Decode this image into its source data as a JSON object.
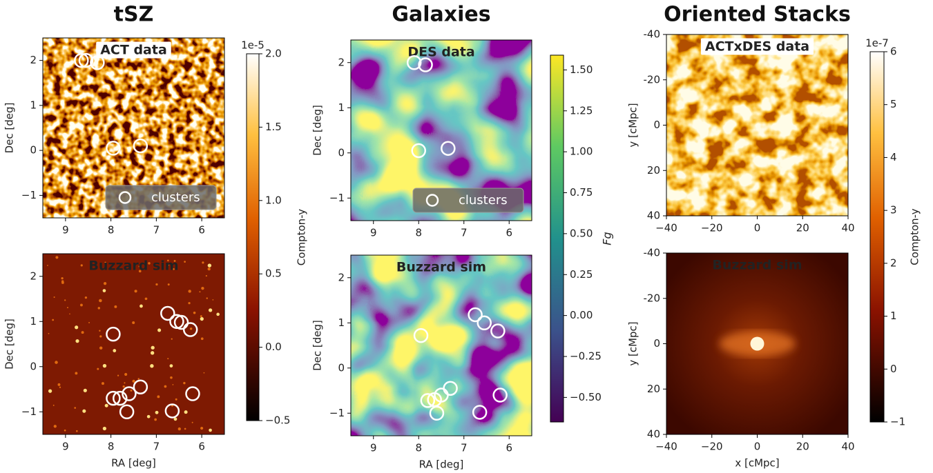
{
  "chart_data": [
    {
      "type": "heatmap",
      "title": "tSZ",
      "label": "ACT data",
      "ylabel": "Dec [deg]",
      "xlim": [
        9.5,
        5.5
      ],
      "xticks": [
        9,
        8,
        7,
        6
      ],
      "ylim": [
        -1.5,
        2.5
      ],
      "yticks": [
        {
          "value": -1,
          "label": "−1"
        },
        0,
        1,
        2
      ],
      "series": [
        {
          "name": "clusters",
          "color": "#ffffff",
          "x": [
            8.65,
            8.55,
            8.3,
            7.95,
            7.35
          ],
          "values": [
            2.0,
            2.0,
            1.95,
            0.05,
            0.1
          ]
        }
      ],
      "colorbar": {
        "label": "Compton-y",
        "offset_label": "1e-5",
        "lim": [
          -0.5,
          2.0
        ],
        "ticks": [
          {
            "value": -0.5,
            "label": "−0.5"
          },
          {
            "value": 0,
            "label": "0.0"
          },
          0.5,
          {
            "value": 1,
            "label": "1.0"
          },
          1.5,
          {
            "value": 2,
            "label": "2.0"
          }
        ]
      }
    },
    {
      "type": "heatmap",
      "label": "Buzzard sim",
      "xlabel": "RA [deg]",
      "ylabel": "Dec [deg]",
      "xlim": [
        9.5,
        5.5
      ],
      "xticks": [
        9,
        8,
        7,
        6
      ],
      "ylim": [
        -1.5,
        2.5
      ],
      "yticks": [
        {
          "value": -1,
          "label": "−1"
        },
        0,
        1,
        2
      ],
      "series": [
        {
          "color": "#ffffff",
          "x": [
            7.95,
            6.75,
            6.55,
            6.45,
            6.25,
            7.95,
            7.8,
            7.6,
            7.35,
            7.65,
            6.65,
            6.2
          ],
          "values": [
            0.72,
            1.18,
            1.0,
            0.98,
            0.82,
            -0.7,
            -0.7,
            -0.6,
            -0.45,
            -1.0,
            -0.98,
            -0.6
          ]
        }
      ]
    },
    {
      "type": "heatmap",
      "title": "Galaxies",
      "label": "DES data",
      "ylabel": "Dec [deg]",
      "xlim": [
        9.5,
        5.5
      ],
      "xticks": [
        9,
        8,
        7,
        6
      ],
      "ylim": [
        -1.5,
        2.5
      ],
      "yticks": [
        {
          "value": -1,
          "label": "−1"
        },
        0,
        1,
        2
      ],
      "series": [
        {
          "name": "clusters",
          "color": "#ffffff",
          "x": [
            8.1,
            7.85,
            8.0,
            7.35
          ],
          "values": [
            2.0,
            1.95,
            0.05,
            0.1
          ]
        }
      ],
      "colorbar": {
        "label": "Fg",
        "lim": [
          -0.65,
          1.59
        ],
        "ticks": [
          {
            "value": -0.5,
            "label": "−0.50"
          },
          {
            "value": -0.25,
            "label": "−0.25"
          },
          {
            "value": 0,
            "label": "0.00"
          },
          0.25,
          {
            "value": 0.5,
            "label": "0.50"
          },
          0.75,
          {
            "value": 1,
            "label": "1.00"
          },
          1.25,
          {
            "value": 1.5,
            "label": "1.50"
          }
        ]
      }
    },
    {
      "type": "heatmap",
      "label": "Buzzard sim",
      "xlabel": "RA [deg]",
      "ylabel": "Dec [deg]",
      "xlim": [
        9.5,
        5.5
      ],
      "xticks": [
        9,
        8,
        7,
        6
      ],
      "ylim": [
        -1.5,
        2.5
      ],
      "yticks": [
        {
          "value": -1,
          "label": "−1"
        },
        0,
        1,
        2
      ],
      "series": [
        {
          "color": "#ffffff",
          "x": [
            7.95,
            6.75,
            6.55,
            6.25,
            7.8,
            7.65,
            7.5,
            7.3,
            7.6,
            6.65,
            6.2
          ],
          "values": [
            0.72,
            1.18,
            1.0,
            0.82,
            -0.72,
            -0.7,
            -0.6,
            -0.45,
            -1.0,
            -0.98,
            -0.6
          ]
        }
      ]
    },
    {
      "type": "heatmap",
      "title": "Oriented Stacks",
      "label": "ACTxDES data",
      "ylabel": "y [cMpc]",
      "xlim": [
        -40,
        40
      ],
      "xticks": [
        {
          "value": -40,
          "label": "−40"
        },
        {
          "value": -20,
          "label": "−20"
        },
        0,
        20,
        40
      ],
      "ylim": [
        40,
        -40
      ],
      "yticks": [
        {
          "value": -40,
          "label": "-40"
        },
        {
          "value": -20,
          "label": "-20"
        },
        0,
        20,
        40
      ],
      "colorbar": {
        "label": "Compton-y",
        "offset_label": "1e-7",
        "lim": [
          -1,
          6
        ],
        "ticks": [
          {
            "value": -1,
            "label": "−1"
          },
          0,
          1,
          2,
          3,
          4,
          5,
          6
        ]
      }
    },
    {
      "type": "heatmap",
      "label": "Buzzard sim",
      "xlabel": "x [cMpc]",
      "ylabel": "y [cMpc]",
      "xlim": [
        -40,
        40
      ],
      "xticks": [
        {
          "value": -40,
          "label": "−40"
        },
        {
          "value": -20,
          "label": "−20"
        },
        0,
        20,
        40
      ],
      "ylim": [
        40,
        -40
      ],
      "yticks": [
        {
          "value": -40,
          "label": "-40"
        },
        {
          "value": -20,
          "label": "-20"
        },
        0,
        20,
        40
      ]
    }
  ]
}
